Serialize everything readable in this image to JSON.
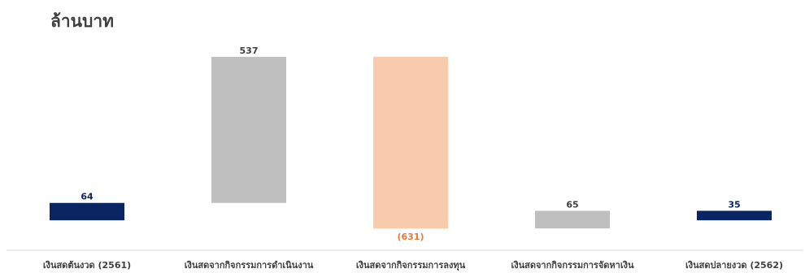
{
  "unit_label": "ล้านบาท",
  "colors": {
    "start_end": "#0b2462",
    "positive": "#bfbfbf",
    "negative": "#f7cbac",
    "negative_label": "#e07b39",
    "value_label": "#404040",
    "axis": "#d9d9d9"
  },
  "chart_data": {
    "type": "bar",
    "subtype": "waterfall",
    "title": "",
    "ylabel": "ล้านบาท",
    "categories": [
      "เงินสดต้นงวด (2561)",
      "เงินสดจากกิจกรรมการดำเนินงาน",
      "เงินสดจากกิจกรรมการลงทุน",
      "เงินสดจากกิจกรรมการจัดหาเงิน",
      "เงินสดปลายงวด (2562)"
    ],
    "values": [
      64,
      537,
      -631,
      65,
      35
    ],
    "value_labels": [
      "64",
      "537",
      "(631)",
      "65",
      "35"
    ],
    "bar_kinds": [
      "total",
      "increase",
      "decrease",
      "increase",
      "total"
    ],
    "ylim": [
      -110,
      780
    ],
    "grid": false,
    "legend": "none"
  }
}
